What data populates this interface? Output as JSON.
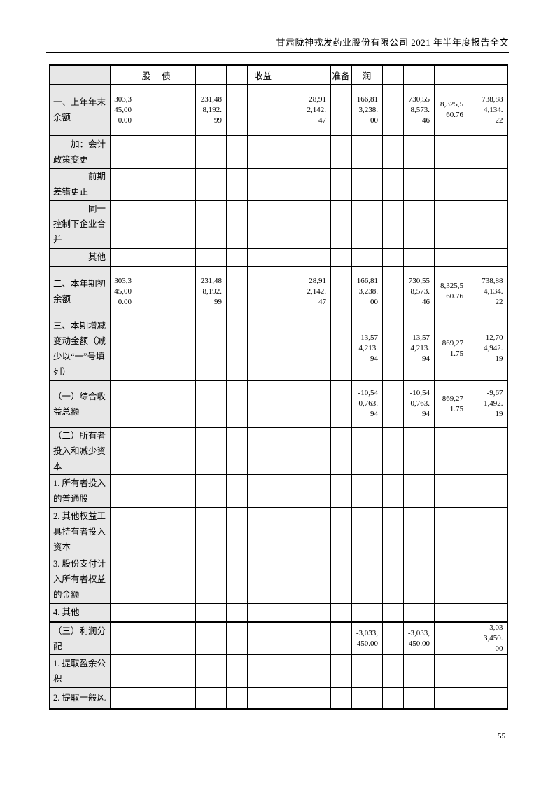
{
  "page_header": {
    "title": "甘肃陇神戎发药业股份有限公司 2021 年半年度报告全文"
  },
  "page_number": "55",
  "colors": {
    "page_bg": "#ffffff",
    "label_bg": "#e7e7e7",
    "border": "#000000",
    "text": "#000000"
  },
  "table": {
    "header_row": {
      "cells": [
        "",
        "股",
        "债",
        "",
        "",
        "",
        "收益",
        "",
        "",
        "准备",
        "润",
        "",
        "",
        "",
        ""
      ]
    },
    "rows": [
      {
        "label": "一、上年年末余额",
        "indent": 0,
        "values": [
          "303,345,000.00",
          "",
          "",
          "",
          "231,488,192.99",
          "",
          "",
          "",
          "28,912,142.47",
          "",
          "166,813,238.00",
          "",
          "730,558,573.46",
          "8,325,560.76",
          "738,884,134.22"
        ]
      },
      {
        "label": "加：会计政策变更",
        "indent": 2,
        "values": [
          "",
          "",
          "",
          "",
          "",
          "",
          "",
          "",
          "",
          "",
          "",
          "",
          "",
          "",
          ""
        ]
      },
      {
        "label": "前期差错更正",
        "indent": 4,
        "values": [
          "",
          "",
          "",
          "",
          "",
          "",
          "",
          "",
          "",
          "",
          "",
          "",
          "",
          "",
          ""
        ]
      },
      {
        "label": "同一控制下企业合并",
        "indent": 4,
        "values": [
          "",
          "",
          "",
          "",
          "",
          "",
          "",
          "",
          "",
          "",
          "",
          "",
          "",
          "",
          ""
        ]
      },
      {
        "label": "其他",
        "indent": 4,
        "values": [
          "",
          "",
          "",
          "",
          "",
          "",
          "",
          "",
          "",
          "",
          "",
          "",
          "",
          "",
          ""
        ]
      },
      {
        "label": "二、本年期初余额",
        "indent": 0,
        "values": [
          "303,345,000.00",
          "",
          "",
          "",
          "231,488,192.99",
          "",
          "",
          "",
          "28,912,142.47",
          "",
          "166,813,238.00",
          "",
          "730,558,573.46",
          "8,325,560.76",
          "738,884,134.22"
        ]
      },
      {
        "label": "三、本期增减变动金额（减少以“一”号填列）",
        "indent": 0,
        "values": [
          "",
          "",
          "",
          "",
          "",
          "",
          "",
          "",
          "",
          "",
          "-13,574,213.94",
          "",
          "-13,574,213.94",
          "869,271.75",
          "-12,704,942.19"
        ]
      },
      {
        "label": "（一）综合收益总额",
        "indent": 0,
        "values": [
          "",
          "",
          "",
          "",
          "",
          "",
          "",
          "",
          "",
          "",
          "-10,540,763.94",
          "",
          "-10,540,763.94",
          "869,271.75",
          "-9,671,492.19"
        ]
      },
      {
        "label": "（二）所有者投入和减少资本",
        "indent": 0,
        "values": [
          "",
          "",
          "",
          "",
          "",
          "",
          "",
          "",
          "",
          "",
          "",
          "",
          "",
          "",
          ""
        ]
      },
      {
        "label": "1. 所有者投入的普通股",
        "indent": 0,
        "values": [
          "",
          "",
          "",
          "",
          "",
          "",
          "",
          "",
          "",
          "",
          "",
          "",
          "",
          "",
          ""
        ]
      },
      {
        "label": "2. 其他权益工具持有者投入资本",
        "indent": 0,
        "values": [
          "",
          "",
          "",
          "",
          "",
          "",
          "",
          "",
          "",
          "",
          "",
          "",
          "",
          "",
          ""
        ]
      },
      {
        "label": "3. 股份支付计入所有者权益的金额",
        "indent": 0,
        "values": [
          "",
          "",
          "",
          "",
          "",
          "",
          "",
          "",
          "",
          "",
          "",
          "",
          "",
          "",
          ""
        ]
      },
      {
        "label": "4. 其他",
        "indent": 0,
        "values": [
          "",
          "",
          "",
          "",
          "",
          "",
          "",
          "",
          "",
          "",
          "",
          "",
          "",
          "",
          ""
        ]
      },
      {
        "label": "（三）利润分配",
        "indent": 0,
        "values": [
          "",
          "",
          "",
          "",
          "",
          "",
          "",
          "",
          "",
          "",
          "-3,033,450.00",
          "",
          "-3,033,450.00",
          "",
          "-3,033,450.00"
        ]
      },
      {
        "label": "1. 提取盈余公积",
        "indent": 0,
        "values": [
          "",
          "",
          "",
          "",
          "",
          "",
          "",
          "",
          "",
          "",
          "",
          "",
          "",
          "",
          ""
        ]
      },
      {
        "label": "2. 提取一般风",
        "indent": 0,
        "values": [
          "",
          "",
          "",
          "",
          "",
          "",
          "",
          "",
          "",
          "",
          "",
          "",
          "",
          "",
          ""
        ]
      }
    ]
  }
}
